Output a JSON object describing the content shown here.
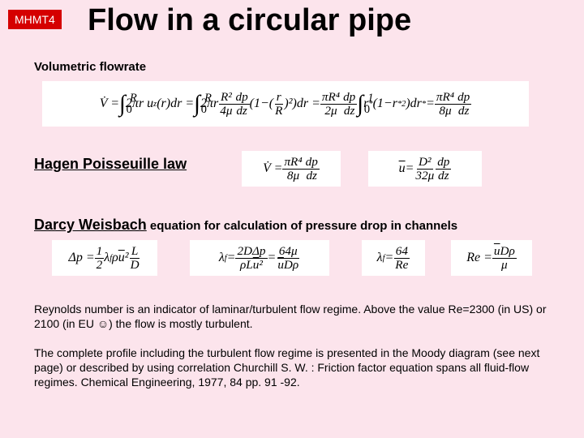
{
  "badge": "MHMT4",
  "title": "Flow in a circular pipe",
  "labels": {
    "volumetric": "Volumetric flowrate",
    "hagen": "Hagen Poisseuille law",
    "darcy_link": "Darcy Weisbach",
    "darcy_rest": " equation for calculation of pressure drop in channels"
  },
  "equations": {
    "vol": "V̇ = ∫₀ᴿ 2πr u_z(r) dr = ∫₀ᴿ 2πr (R²/4μ)(dp/dz)(1−(r/R)²) dr = (πR⁴/2μ)(dp/dz) ∫₀¹ r*(1−r*²) dr* = (πR⁴/8μ)(dp/dz)",
    "hp1": "V̇ = (πR⁴ / 8μ)(dp/dz)",
    "hp2": "ū = (D² / 32μ)(dp/dz)",
    "dw1": "Δp = ½ λ_f ρ ū² (L/D)",
    "dw2": "λ_f = 2DΔp / (ρLū²) = 64μ / (ūDρ)",
    "dw3": "λ_f = 64 / Re",
    "dw4": "Re = ūDρ / μ"
  },
  "paragraphs": {
    "p1": "Reynolds number is an indicator of laminar/turbulent flow regime. Above the value Re=2300 (in US) or 2100 (in EU ☺) the flow is mostly turbulent.",
    "p2": "The complete profile including the turbulent flow regime is presented in the Moody diagram (see next page) or described by using correlation Churchill S. W. : Friction factor equation spans all fluid-flow regimes. Chemical Engineering, 1977, 84 pp. 91 -92."
  },
  "colors": {
    "background": "#fce4ec",
    "badge_bg": "#d50000",
    "badge_fg": "#ffffff",
    "text": "#000000",
    "eq_bg": "#ffffff"
  }
}
